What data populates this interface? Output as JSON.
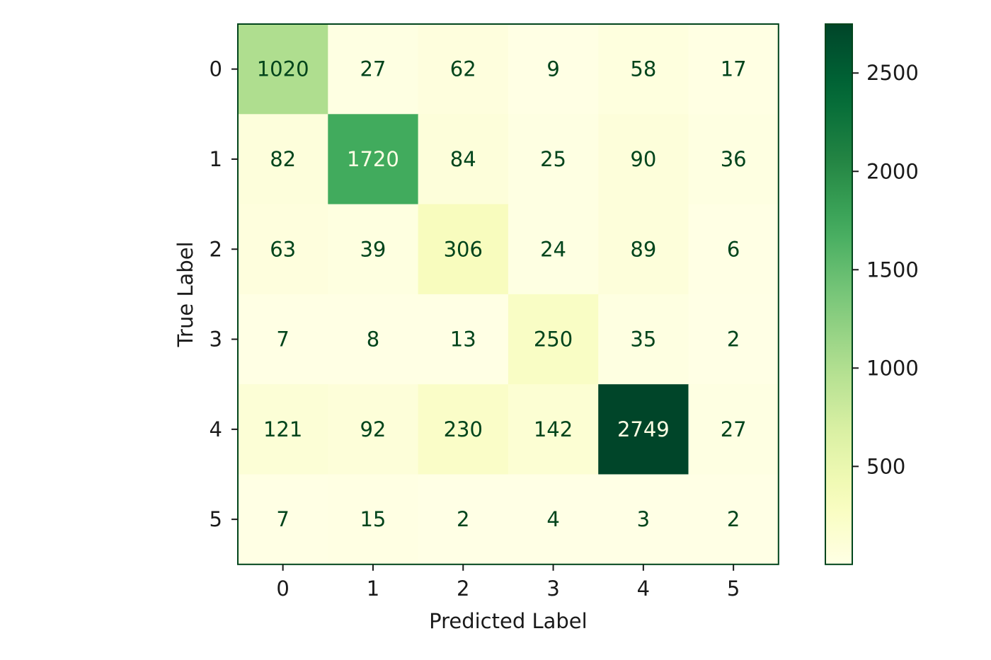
{
  "chart_data": {
    "type": "heatmap",
    "title": "",
    "xlabel": "Predicted Label",
    "ylabel": "True Label",
    "x_categories": [
      "0",
      "1",
      "2",
      "3",
      "4",
      "5"
    ],
    "y_categories": [
      "0",
      "1",
      "2",
      "3",
      "4",
      "5"
    ],
    "matrix": [
      [
        1020,
        27,
        62,
        9,
        58,
        17
      ],
      [
        82,
        1720,
        84,
        25,
        90,
        36
      ],
      [
        63,
        39,
        306,
        24,
        89,
        6
      ],
      [
        7,
        8,
        13,
        250,
        35,
        2
      ],
      [
        121,
        92,
        230,
        142,
        2749,
        27
      ],
      [
        7,
        15,
        2,
        4,
        3,
        2
      ]
    ],
    "colormap": "YlGn",
    "colorbar": {
      "range": [
        2,
        2749
      ],
      "ticks": [
        500,
        1000,
        1500,
        2000,
        2500
      ],
      "tick_labels": [
        "500",
        "1000",
        "1500",
        "2000",
        "2500"
      ]
    },
    "text_colors": {
      "dark": "#00441b",
      "light": "#ffffe5"
    },
    "frame_color": "#00441b"
  }
}
